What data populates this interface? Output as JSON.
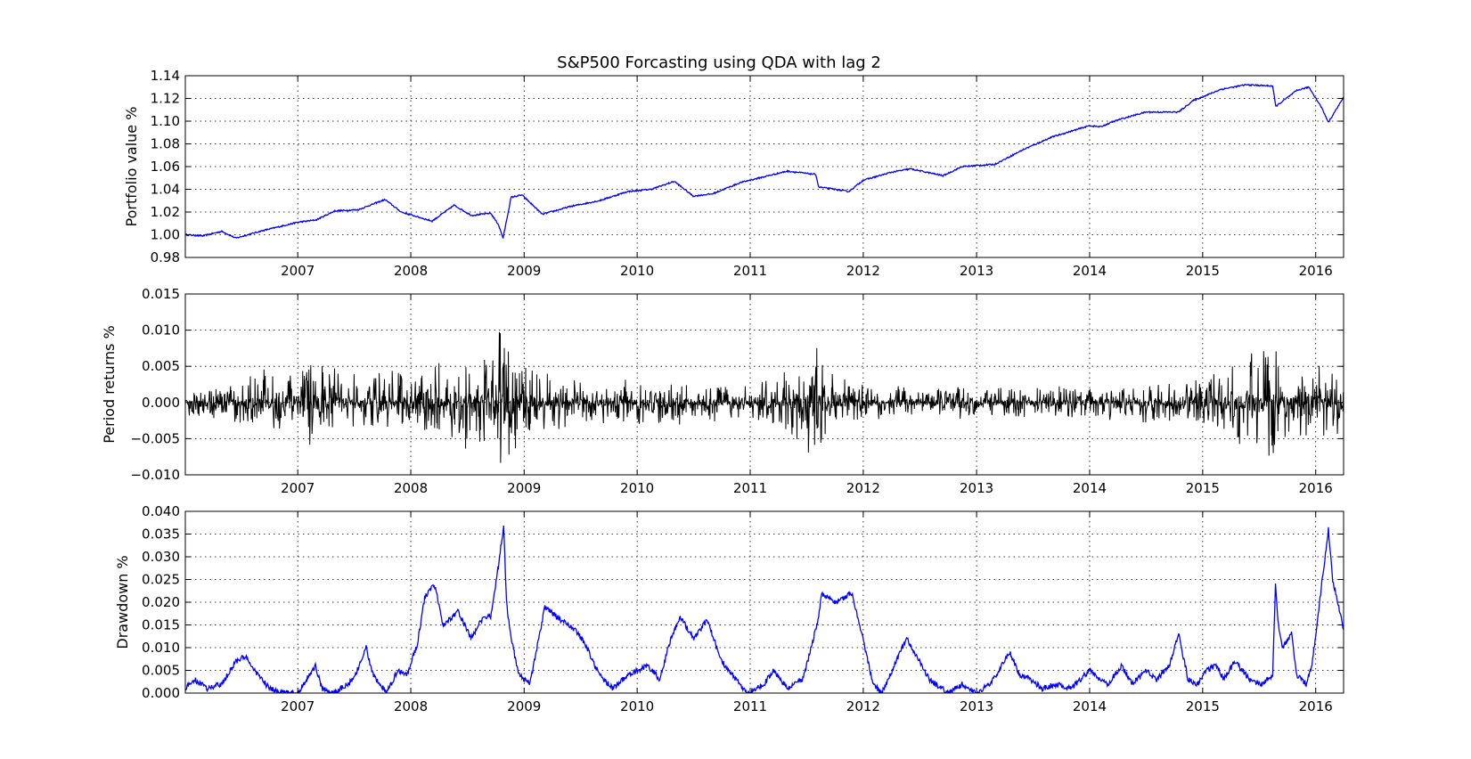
{
  "chart_data": [
    {
      "type": "line",
      "title": "S&P500 Forcasting using QDA with lag 2",
      "xlabel": "",
      "ylabel": "Portfolio value %",
      "x_range": [
        "2006-01-03",
        "2016-03-31"
      ],
      "ylim": [
        0.98,
        1.14
      ],
      "xticks": [
        "2007",
        "2008",
        "2009",
        "2010",
        "2011",
        "2012",
        "2013",
        "2014",
        "2015",
        "2016"
      ],
      "yticks": [
        "0.98",
        "1.00",
        "1.02",
        "1.04",
        "1.06",
        "1.08",
        "1.10",
        "1.12",
        "1.14"
      ],
      "grid": true,
      "color": "#0000ff",
      "series": [
        {
          "x": [
            "2006-01-03",
            "2006-03-01",
            "2006-05-01",
            "2006-06-15",
            "2006-09-01",
            "2007-01-01",
            "2007-03-01",
            "2007-05-01",
            "2007-07-15",
            "2007-10-10",
            "2007-12-01",
            "2008-03-10",
            "2008-05-20",
            "2008-07-15",
            "2008-09-15",
            "2008-10-10",
            "2008-10-25",
            "2008-11-20",
            "2008-12-25",
            "2009-03-01",
            "2009-06-01",
            "2009-09-01",
            "2009-12-01",
            "2010-02-15",
            "2010-05-01",
            "2010-07-01",
            "2010-09-01",
            "2010-12-01",
            "2011-03-01",
            "2011-05-01",
            "2011-08-01",
            "2011-08-10",
            "2011-10-01",
            "2011-11-15",
            "2012-01-01",
            "2012-04-01",
            "2012-06-01",
            "2012-09-15",
            "2012-11-15",
            "2013-03-01",
            "2013-06-01",
            "2013-09-01",
            "2013-12-31",
            "2014-02-05",
            "2014-04-01",
            "2014-07-01",
            "2014-10-15",
            "2014-12-01",
            "2015-03-01",
            "2015-05-20",
            "2015-08-15",
            "2015-08-25",
            "2015-11-01",
            "2015-12-10",
            "2016-01-20",
            "2016-02-11",
            "2016-03-31"
          ],
          "y": [
            1.0,
            0.999,
            1.003,
            0.997,
            1.003,
            1.011,
            1.013,
            1.021,
            1.022,
            1.031,
            1.02,
            1.012,
            1.026,
            1.017,
            1.019,
            1.009,
            0.997,
            1.033,
            1.035,
            1.018,
            1.025,
            1.03,
            1.038,
            1.04,
            1.047,
            1.034,
            1.036,
            1.046,
            1.052,
            1.056,
            1.053,
            1.042,
            1.04,
            1.038,
            1.048,
            1.055,
            1.058,
            1.052,
            1.06,
            1.062,
            1.075,
            1.086,
            1.096,
            1.095,
            1.101,
            1.108,
            1.108,
            1.118,
            1.128,
            1.132,
            1.131,
            1.113,
            1.127,
            1.13,
            1.112,
            1.099,
            1.121
          ]
        }
      ]
    },
    {
      "type": "line",
      "title": "",
      "xlabel": "",
      "ylabel": "Period returns %",
      "x_range": [
        "2006-01-03",
        "2016-03-31"
      ],
      "ylim": [
        -0.01,
        0.015
      ],
      "xticks": [
        "2007",
        "2008",
        "2009",
        "2010",
        "2011",
        "2012",
        "2013",
        "2014",
        "2015",
        "2016"
      ],
      "yticks": [
        "−0.010",
        "−0.005",
        "0.000",
        "0.005",
        "0.010",
        "0.015"
      ],
      "grid": true,
      "color": "#000000",
      "volatility_envelope": {
        "x": [
          "2006-01-03",
          "2007-02-27",
          "2007-08-01",
          "2008-01-15",
          "2008-03-15",
          "2008-09-15",
          "2008-10-10",
          "2008-10-25",
          "2008-11-20",
          "2009-03-01",
          "2009-06-01",
          "2010-05-07",
          "2011-01-01",
          "2011-08-08",
          "2011-10-01",
          "2012-01-01",
          "2013-01-01",
          "2014-01-01",
          "2014-10-15",
          "2015-01-01",
          "2015-08-24",
          "2015-09-15",
          "2016-01-20",
          "2016-03-31"
        ],
        "amplitude": [
          0.001,
          0.004,
          0.0025,
          0.003,
          0.004,
          0.0045,
          0.009,
          0.0075,
          0.0045,
          0.003,
          0.002,
          0.002,
          0.0015,
          0.0055,
          0.003,
          0.0015,
          0.0015,
          0.0015,
          0.002,
          0.0025,
          0.006,
          0.003,
          0.0035,
          0.003
        ]
      }
    },
    {
      "type": "line",
      "title": "",
      "xlabel": "",
      "ylabel": "Drawdown %",
      "x_range": [
        "2006-01-03",
        "2016-03-31"
      ],
      "ylim": [
        0.0,
        0.04
      ],
      "xticks": [
        "2007",
        "2008",
        "2009",
        "2010",
        "2011",
        "2012",
        "2013",
        "2014",
        "2015",
        "2016"
      ],
      "yticks": [
        "0.000",
        "0.005",
        "0.010",
        "0.015",
        "0.020",
        "0.025",
        "0.030",
        "0.035",
        "0.040"
      ],
      "grid": true,
      "color": "#0000ff",
      "series": [
        {
          "x": [
            "2006-01-03",
            "2006-02-01",
            "2006-03-15",
            "2006-05-01",
            "2006-06-15",
            "2006-07-15",
            "2006-08-15",
            "2006-10-01",
            "2006-11-15",
            "2007-01-01",
            "2007-02-27",
            "2007-03-20",
            "2007-05-01",
            "2007-07-01",
            "2007-08-10",
            "2007-09-01",
            "2007-10-15",
            "2007-11-20",
            "2007-12-20",
            "2008-01-23",
            "2008-02-15",
            "2008-03-17",
            "2008-04-15",
            "2008-06-01",
            "2008-07-15",
            "2008-08-15",
            "2008-09-15",
            "2008-10-10",
            "2008-10-27",
            "2008-11-05",
            "2008-11-20",
            "2008-12-15",
            "2009-01-20",
            "2009-03-09",
            "2009-05-01",
            "2009-06-15",
            "2009-07-15",
            "2009-09-01",
            "2009-10-15",
            "2009-12-01",
            "2010-02-05",
            "2010-03-15",
            "2010-04-15",
            "2010-05-20",
            "2010-07-01",
            "2010-08-15",
            "2010-10-01",
            "2010-11-15",
            "2010-12-20",
            "2011-02-15",
            "2011-03-16",
            "2011-05-01",
            "2011-06-20",
            "2011-08-08",
            "2011-08-20",
            "2011-10-03",
            "2011-11-25",
            "2011-12-31",
            "2012-02-01",
            "2012-03-01",
            "2012-05-20",
            "2012-06-15",
            "2012-08-01",
            "2012-10-01",
            "2012-11-15",
            "2013-01-01",
            "2013-02-15",
            "2013-04-18",
            "2013-05-20",
            "2013-06-24",
            "2013-08-01",
            "2013-09-15",
            "2013-11-01",
            "2014-01-01",
            "2014-02-03",
            "2014-03-01",
            "2014-04-15",
            "2014-05-20",
            "2014-07-01",
            "2014-08-05",
            "2014-09-15",
            "2014-10-15",
            "2014-11-15",
            "2014-12-16",
            "2015-01-10",
            "2015-02-15",
            "2015-03-10",
            "2015-04-15",
            "2015-06-01",
            "2015-07-08",
            "2015-08-15",
            "2015-08-24",
            "2015-09-01",
            "2015-09-15",
            "2015-10-15",
            "2015-11-01",
            "2015-12-01",
            "2015-12-20",
            "2016-01-15",
            "2016-02-11",
            "2016-02-25",
            "2016-03-31"
          ],
          "y": [
            0.001,
            0.003,
            0.001,
            0.002,
            0.007,
            0.008,
            0.005,
            0.001,
            0.0,
            0.0,
            0.006,
            0.001,
            0.0,
            0.003,
            0.01,
            0.004,
            0.0,
            0.005,
            0.004,
            0.011,
            0.021,
            0.024,
            0.015,
            0.018,
            0.012,
            0.016,
            0.017,
            0.028,
            0.037,
            0.02,
            0.012,
            0.004,
            0.002,
            0.019,
            0.016,
            0.014,
            0.011,
            0.004,
            0.001,
            0.004,
            0.006,
            0.003,
            0.011,
            0.017,
            0.012,
            0.016,
            0.007,
            0.003,
            0.0,
            0.002,
            0.005,
            0.001,
            0.003,
            0.016,
            0.022,
            0.02,
            0.022,
            0.012,
            0.002,
            0.0,
            0.012,
            0.009,
            0.003,
            0.0,
            0.002,
            0.0,
            0.002,
            0.009,
            0.004,
            0.003,
            0.001,
            0.002,
            0.001,
            0.005,
            0.003,
            0.002,
            0.006,
            0.002,
            0.005,
            0.003,
            0.006,
            0.013,
            0.003,
            0.002,
            0.005,
            0.006,
            0.003,
            0.007,
            0.003,
            0.002,
            0.004,
            0.024,
            0.016,
            0.01,
            0.013,
            0.004,
            0.002,
            0.006,
            0.021,
            0.036,
            0.025,
            0.014
          ]
        }
      ]
    }
  ]
}
